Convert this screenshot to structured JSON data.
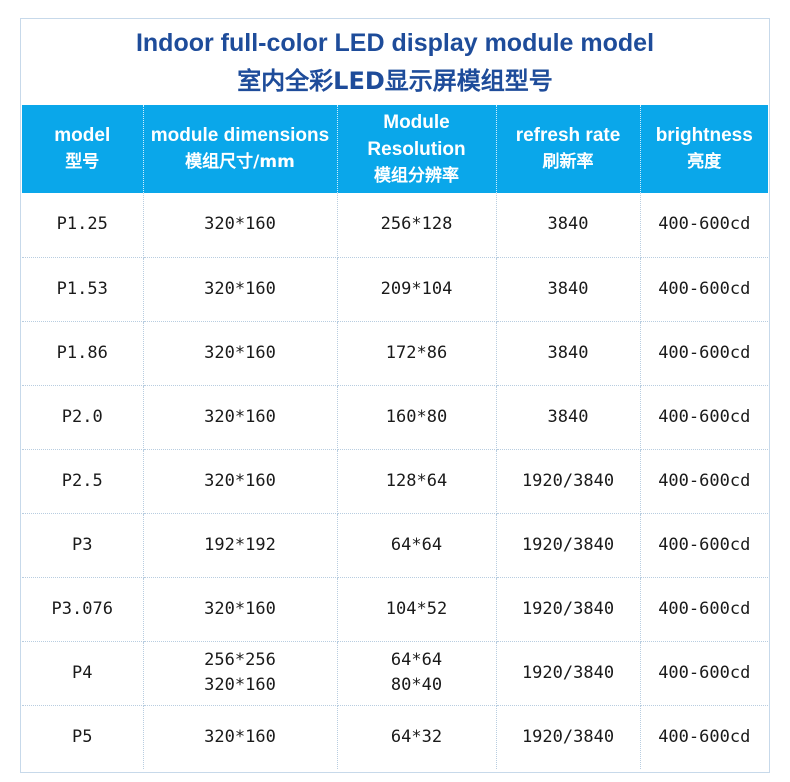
{
  "title_en": "Indoor full-color LED display module model",
  "title_zh": "室内全彩LED显示屏模组型号",
  "headers": [
    {
      "en": "model",
      "zh": "型号"
    },
    {
      "en": "module dimensions",
      "zh": "模组尺寸/mm"
    },
    {
      "en": "Module Resolution",
      "zh": "模组分辨率"
    },
    {
      "en": "refresh rate",
      "zh": "刷新率"
    },
    {
      "en": "brightness",
      "zh": "亮度"
    }
  ],
  "rows": [
    {
      "model": "P1.25",
      "dimensions": [
        "320*160"
      ],
      "resolution": [
        "256*128"
      ],
      "refresh": "3840",
      "brightness": "400-600cd"
    },
    {
      "model": "P1.53",
      "dimensions": [
        "320*160"
      ],
      "resolution": [
        "209*104"
      ],
      "refresh": "3840",
      "brightness": "400-600cd"
    },
    {
      "model": "P1.86",
      "dimensions": [
        "320*160"
      ],
      "resolution": [
        "172*86"
      ],
      "refresh": "3840",
      "brightness": "400-600cd"
    },
    {
      "model": "P2.0",
      "dimensions": [
        "320*160"
      ],
      "resolution": [
        "160*80"
      ],
      "refresh": "3840",
      "brightness": "400-600cd"
    },
    {
      "model": "P2.5",
      "dimensions": [
        "320*160"
      ],
      "resolution": [
        "128*64"
      ],
      "refresh": "1920/3840",
      "brightness": "400-600cd"
    },
    {
      "model": "P3",
      "dimensions": [
        "192*192"
      ],
      "resolution": [
        "64*64"
      ],
      "refresh": "1920/3840",
      "brightness": "400-600cd"
    },
    {
      "model": "P3.076",
      "dimensions": [
        "320*160"
      ],
      "resolution": [
        "104*52"
      ],
      "refresh": "1920/3840",
      "brightness": "400-600cd"
    },
    {
      "model": "P4",
      "dimensions": [
        "256*256",
        "320*160"
      ],
      "resolution": [
        "64*64",
        "80*40"
      ],
      "refresh": "1920/3840",
      "brightness": "400-600cd"
    },
    {
      "model": "P5",
      "dimensions": [
        "320*160"
      ],
      "resolution": [
        "64*32"
      ],
      "refresh": "1920/3840",
      "brightness": "400-600cd"
    }
  ]
}
